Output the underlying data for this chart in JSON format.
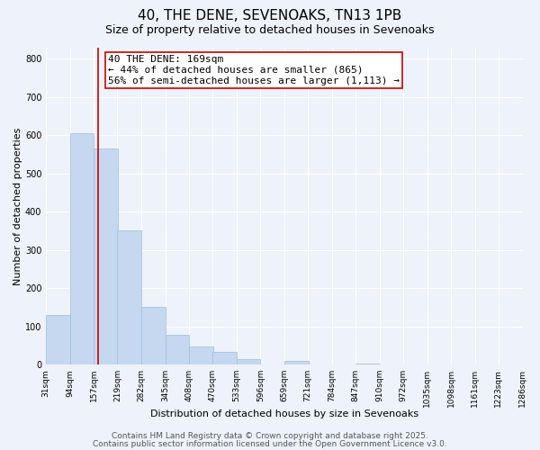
{
  "title": "40, THE DENE, SEVENOAKS, TN13 1PB",
  "subtitle": "Size of property relative to detached houses in Sevenoaks",
  "xlabel": "Distribution of detached houses by size in Sevenoaks",
  "ylabel": "Number of detached properties",
  "bin_labels": [
    "31sqm",
    "94sqm",
    "157sqm",
    "219sqm",
    "282sqm",
    "345sqm",
    "408sqm",
    "470sqm",
    "533sqm",
    "596sqm",
    "659sqm",
    "721sqm",
    "784sqm",
    "847sqm",
    "910sqm",
    "972sqm",
    "1035sqm",
    "1098sqm",
    "1161sqm",
    "1223sqm",
    "1286sqm"
  ],
  "bin_edges": [
    31,
    94,
    157,
    219,
    282,
    345,
    408,
    470,
    533,
    596,
    659,
    721,
    784,
    847,
    910,
    972,
    1035,
    1098,
    1161,
    1223,
    1286
  ],
  "bar_values": [
    130,
    605,
    565,
    350,
    150,
    78,
    48,
    33,
    15,
    0,
    10,
    0,
    0,
    2,
    0,
    0,
    0,
    0,
    0,
    0
  ],
  "bar_color": "#c5d8f0",
  "bar_edge_color": "#9bbedd",
  "vline_x": 169,
  "vline_color": "#cc0000",
  "annotation_title": "40 THE DENE: 169sqm",
  "annotation_line1": "← 44% of detached houses are smaller (865)",
  "annotation_line2": "56% of semi-detached houses are larger (1,113) →",
  "annotation_box_facecolor": "#ffffff",
  "annotation_box_edgecolor": "#cc0000",
  "ylim": [
    0,
    830
  ],
  "yticks": [
    0,
    100,
    200,
    300,
    400,
    500,
    600,
    700,
    800
  ],
  "footer1": "Contains HM Land Registry data © Crown copyright and database right 2025.",
  "footer2": "Contains public sector information licensed under the Open Government Licence v3.0.",
  "bg_color": "#eef2fa",
  "grid_color": "#ffffff",
  "title_fontsize": 11,
  "subtitle_fontsize": 9,
  "axis_label_fontsize": 8,
  "tick_fontsize": 7,
  "annotation_fontsize": 8,
  "footer_fontsize": 6.5
}
